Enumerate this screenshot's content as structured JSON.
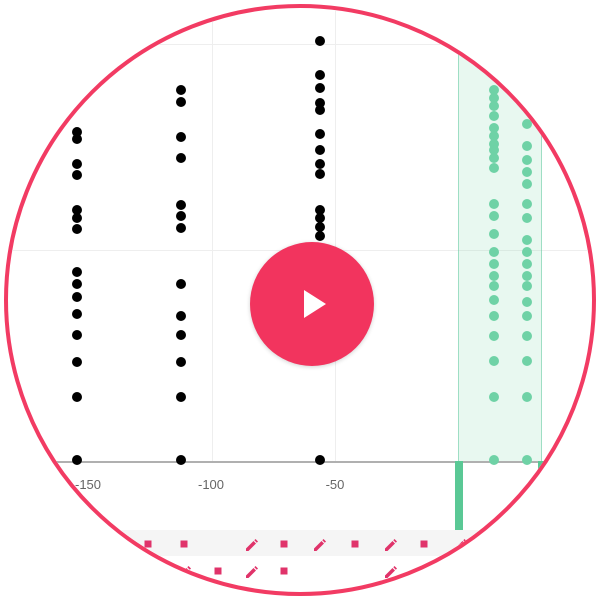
{
  "player": {
    "accent": "#f23b63",
    "play_button_icon": "play-icon",
    "play_button_color": "#f2345e"
  },
  "plot": {
    "x_tick_labels": [
      "-150",
      "-100",
      "-50"
    ],
    "point_color_default": "#000000",
    "point_color_selected": "#6fd2a6",
    "selection_color": "#80d6ae"
  },
  "icons": {
    "pencil_icon": "pencil-icon",
    "square_marker_icon": "square-marker-icon",
    "color": "#e0336a"
  }
}
